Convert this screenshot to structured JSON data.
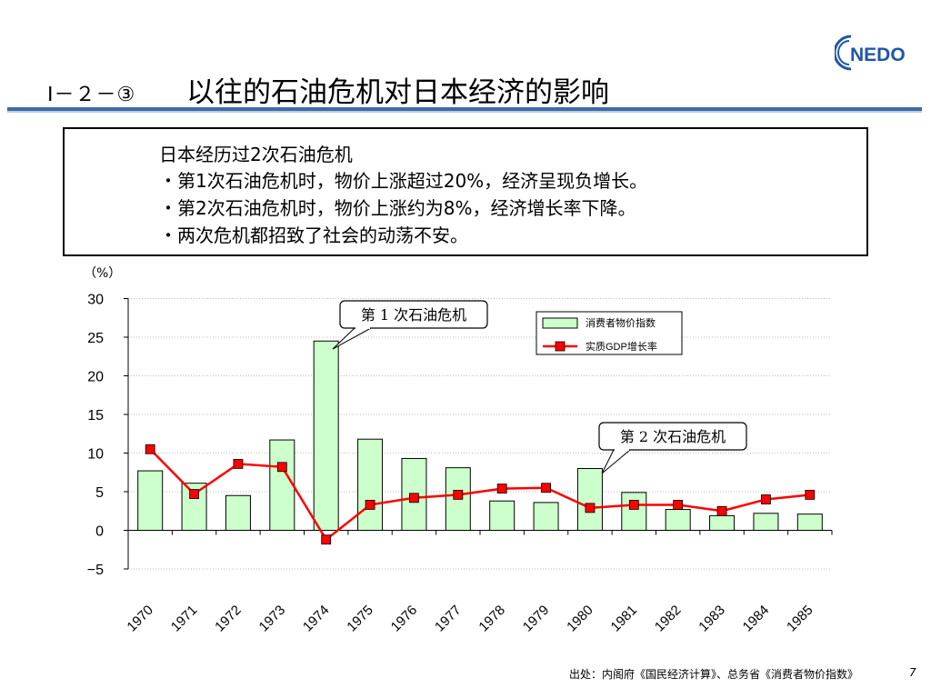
{
  "header": {
    "section_number": "Ⅰ－２－③",
    "title": "以往的石油危机对日本经济的影响",
    "logo_text": "NEDO"
  },
  "summary": {
    "heading": "日本经历过2次石油危机",
    "bullets": [
      "・第1次石油危机时，物价上涨超过20%，经济呈现负增长。",
      "・第2次石油危机时，物价上涨约为8%，经济增长率下降。",
      "・两次危机都招致了社会的动荡不安。"
    ]
  },
  "unit_label": "（%）",
  "chart_data": {
    "type": "bar",
    "categories": [
      "1970",
      "1971",
      "1972",
      "1973",
      "1974",
      "1975",
      "1976",
      "1977",
      "1978",
      "1979",
      "1980",
      "1981",
      "1982",
      "1983",
      "1984",
      "1985"
    ],
    "series": [
      {
        "name": "消费者物价指数",
        "type": "bar",
        "color": "#ccffcc",
        "values": [
          7.7,
          6.1,
          4.5,
          11.7,
          24.5,
          11.8,
          9.3,
          8.1,
          3.8,
          3.6,
          8.0,
          4.9,
          2.7,
          1.9,
          2.2,
          2.1
        ]
      },
      {
        "name": "实质GDP增长率",
        "type": "line",
        "color": "#ff0000",
        "values": [
          10.5,
          4.7,
          8.6,
          8.2,
          -1.2,
          3.3,
          4.2,
          4.6,
          5.4,
          5.5,
          2.9,
          3.3,
          3.3,
          2.5,
          4.0,
          4.6
        ]
      }
    ],
    "y_ticks": [
      "30",
      "25",
      "20",
      "15",
      "10",
      "5",
      "0",
      "−5"
    ],
    "ylim": [
      -5,
      30
    ],
    "grid": true,
    "legend_position": "top-right",
    "annotations": [
      "第 1 次石油危机",
      "第 2 次石油危机"
    ]
  },
  "footer": {
    "source": "出处：内阁府《国民经济计算》、总务省《消费者物价指数》",
    "page": "7"
  }
}
